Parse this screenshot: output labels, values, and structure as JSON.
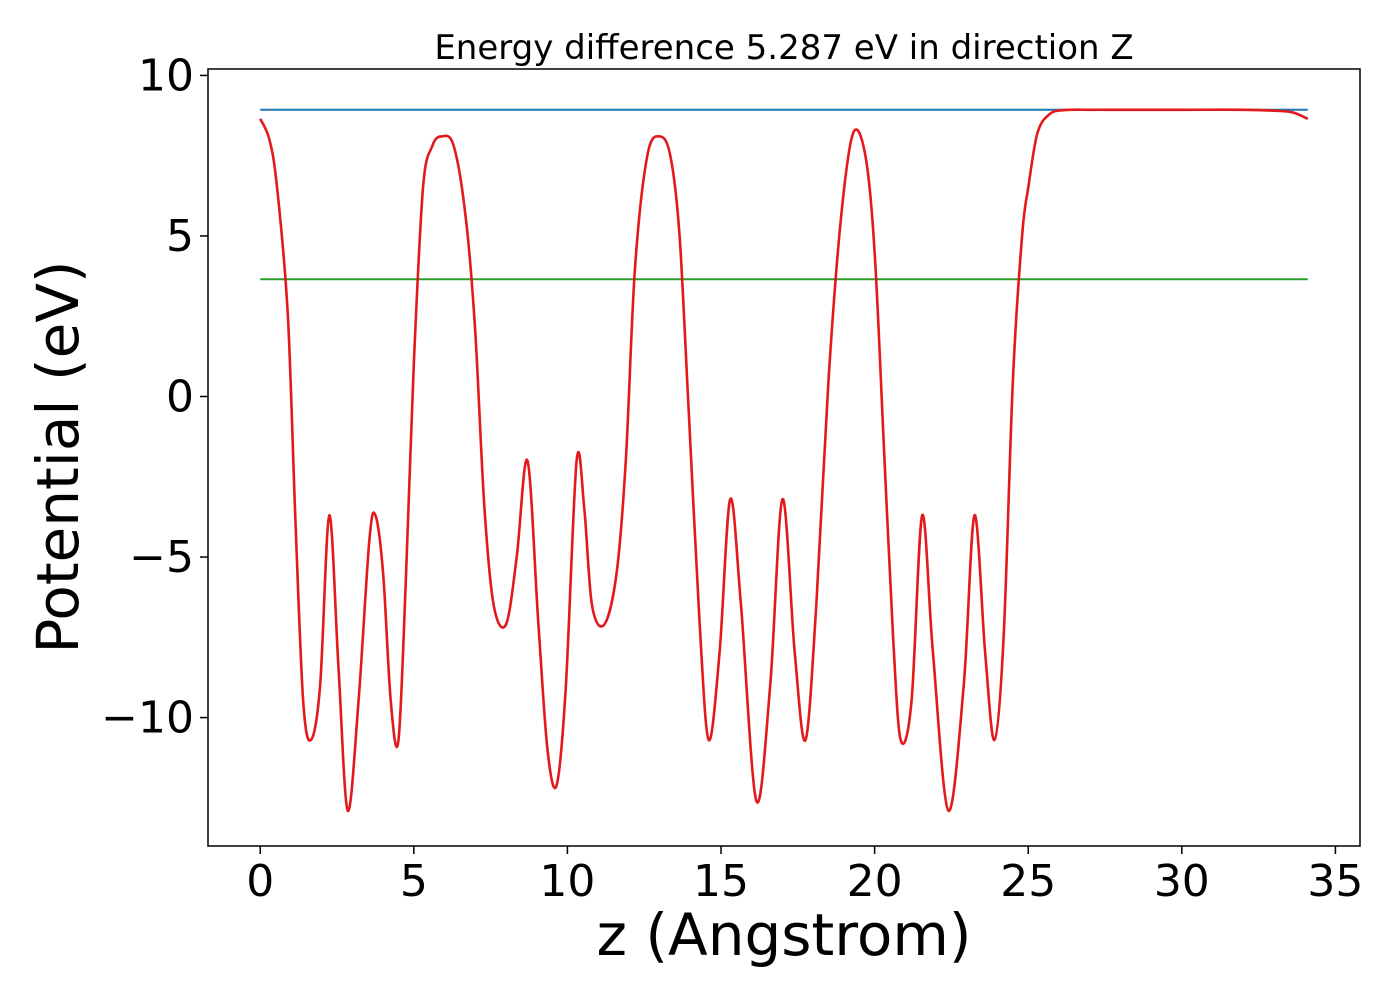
{
  "chart_data": {
    "type": "line",
    "title": "Energy difference 5.287 eV in direction Z",
    "xlabel": "z (Angstrom)",
    "ylabel": "Potential (eV)",
    "xlim": [
      -1.7,
      35.8
    ],
    "ylim": [
      -14.0,
      10.2
    ],
    "x_ticks": [
      0,
      5,
      10,
      15,
      20,
      25,
      30,
      35
    ],
    "x_tick_labels": [
      "0",
      "5",
      "10",
      "15",
      "20",
      "25",
      "30",
      "35"
    ],
    "y_ticks": [
      -10,
      -5,
      0,
      5,
      10
    ],
    "y_tick_labels": [
      "−10",
      "−5",
      "0",
      "5",
      "10"
    ],
    "grid": false,
    "series": [
      {
        "color": "#1f77b4",
        "style": "horizontal",
        "x": [
          0,
          34.1
        ],
        "y": [
          8.93,
          8.93
        ]
      },
      {
        "color": "#2ca02c",
        "style": "horizontal",
        "x": [
          0,
          34.1
        ],
        "y": [
          3.65,
          3.65
        ]
      },
      {
        "color": "#e31a1c",
        "style": "curve",
        "x": [
          0,
          0.3,
          0.55,
          0.9,
          1.15,
          1.4,
          1.65,
          1.95,
          2.25,
          2.55,
          2.85,
          3.2,
          3.55,
          3.75,
          4.0,
          4.25,
          4.5,
          4.75,
          5.0,
          5.3,
          5.6,
          5.9,
          6.3,
          6.7,
          7.0,
          7.3,
          7.6,
          8.0,
          8.35,
          8.7,
          9.05,
          9.35,
          9.65,
          9.95,
          10.3,
          10.55,
          10.8,
          11.2,
          11.6,
          11.9,
          12.2,
          12.6,
          13.0,
          13.35,
          13.65,
          13.95,
          14.3,
          14.6,
          14.95,
          15.3,
          15.65,
          16.15,
          16.6,
          17.0,
          17.4,
          17.75,
          18.1,
          18.5,
          18.9,
          19.3,
          19.7,
          20.0,
          20.3,
          20.6,
          20.85,
          21.2,
          21.55,
          21.9,
          22.4,
          22.9,
          23.25,
          23.6,
          23.9,
          24.2,
          24.5,
          24.8,
          25.0,
          25.3,
          25.7,
          26.2,
          27.0,
          28.0,
          30.0,
          32.0,
          33.0,
          33.6,
          34.1
        ],
        "y": [
          8.65,
          8.0,
          6.5,
          2.5,
          -4.0,
          -9.5,
          -10.7,
          -9.0,
          -3.7,
          -8.5,
          -12.9,
          -9.5,
          -4.5,
          -3.7,
          -5.5,
          -9.5,
          -10.7,
          -5.5,
          1.0,
          6.5,
          7.8,
          8.1,
          7.8,
          5.5,
          2.0,
          -3.5,
          -6.5,
          -7.1,
          -5.0,
          -2.0,
          -7.0,
          -11.0,
          -12.1,
          -9.0,
          -2.0,
          -3.5,
          -6.5,
          -7.1,
          -5.5,
          -2.0,
          4.0,
          7.5,
          8.1,
          7.5,
          5.0,
          -0.5,
          -7.0,
          -10.7,
          -8.0,
          -3.2,
          -6.5,
          -12.6,
          -9.0,
          -3.2,
          -8.0,
          -10.7,
          -6.5,
          0.5,
          5.5,
          8.2,
          7.5,
          4.5,
          -1.5,
          -7.5,
          -10.7,
          -9.5,
          -3.7,
          -8.0,
          -12.9,
          -9.0,
          -3.7,
          -8.0,
          -10.7,
          -7.5,
          0.5,
          5.0,
          6.5,
          8.2,
          8.8,
          8.92,
          8.93,
          8.93,
          8.93,
          8.93,
          8.9,
          8.85,
          8.65
        ]
      }
    ]
  }
}
